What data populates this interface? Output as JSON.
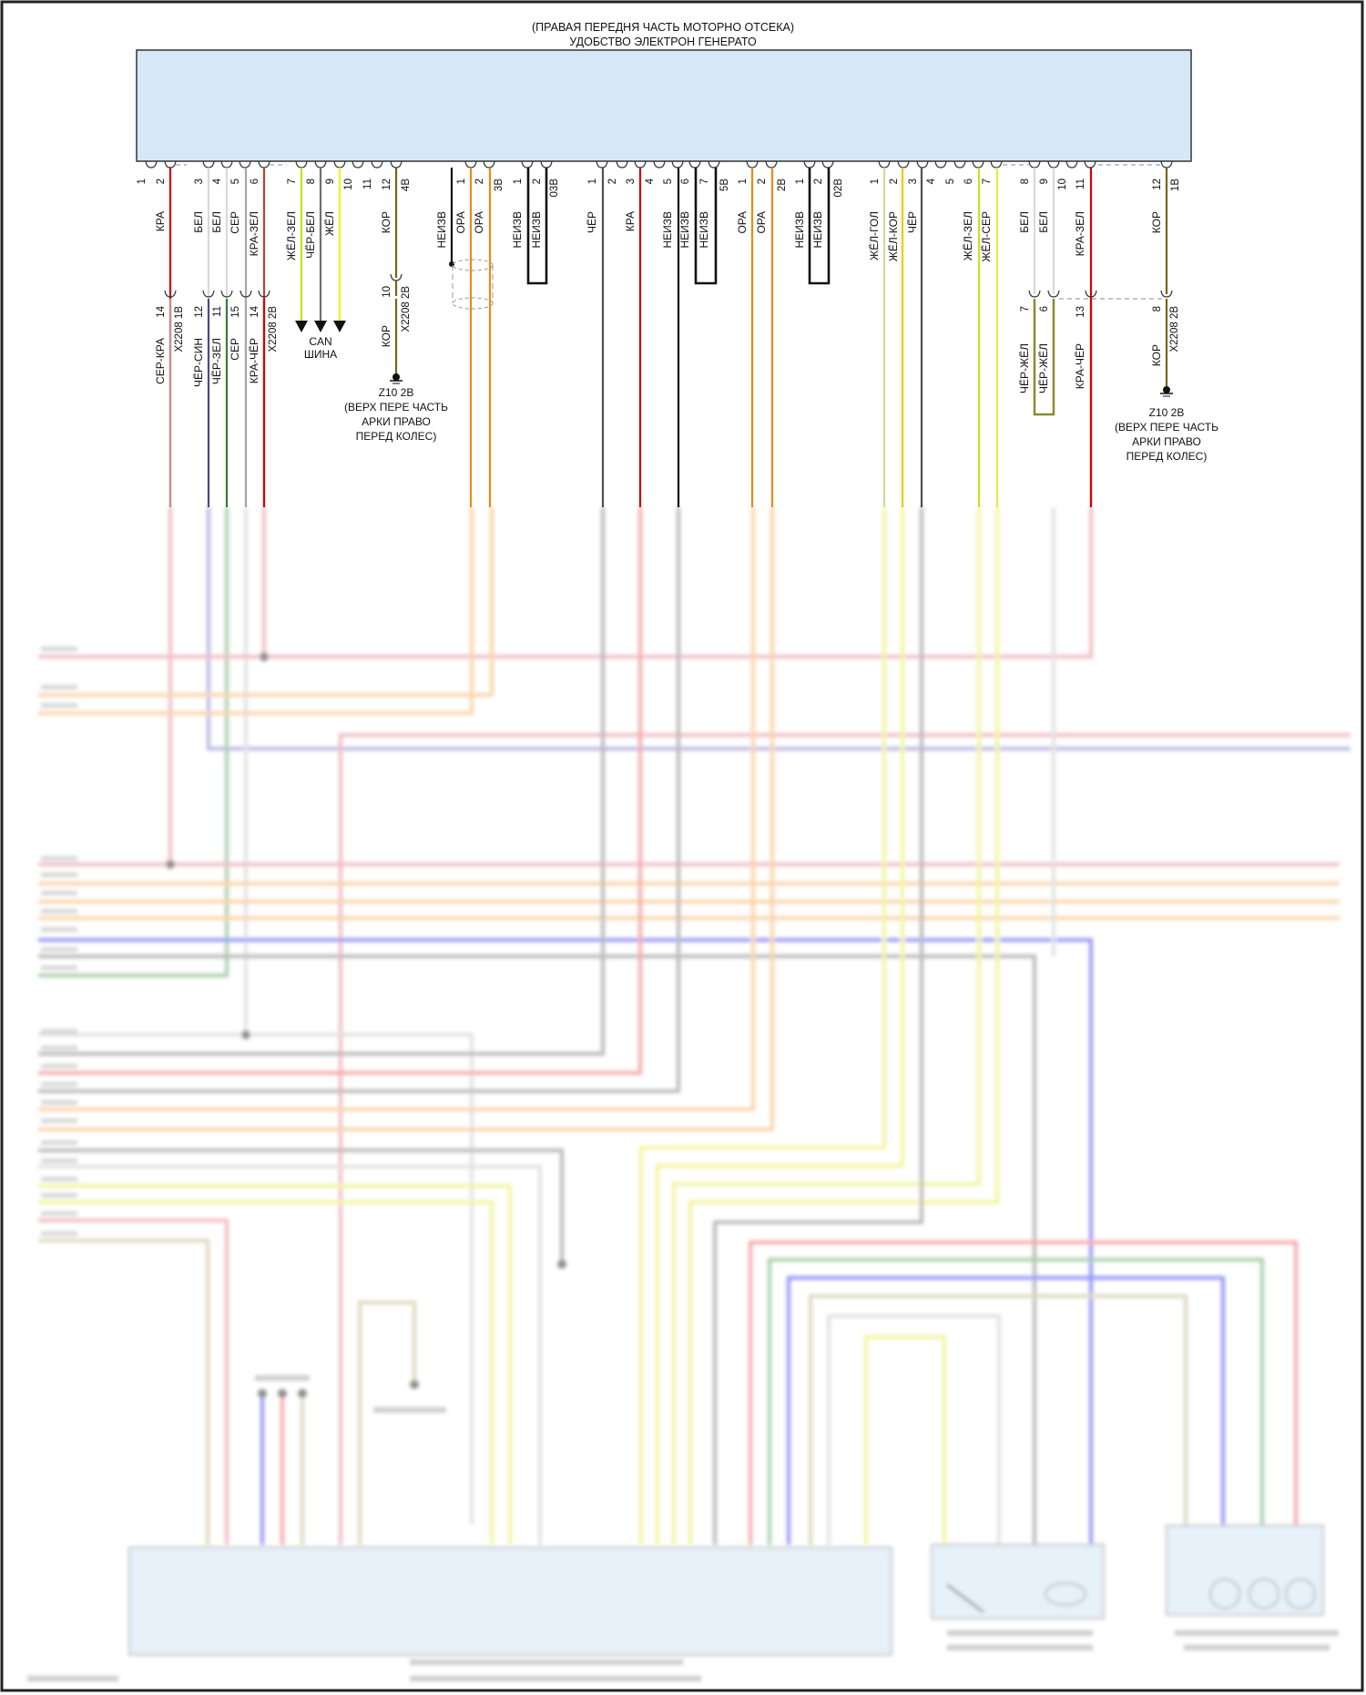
{
  "title": {
    "line1": "(ПРАВАЯ ПЕРЕДНЯ ЧАСТЬ МОТОРНО ОТСЕКА)",
    "line2": "УДОБСТВО ЭЛЕКТРОН ГЕНЕРАТО"
  },
  "top_pins": [
    "1",
    "2",
    "3",
    "4",
    "5",
    "6",
    "7",
    "8",
    "9",
    "10",
    "11",
    "12",
    "1",
    "2",
    "1",
    "2",
    "1",
    "2",
    "3",
    "4",
    "5",
    "6",
    "7",
    "1",
    "2",
    "1",
    "2",
    "1",
    "2",
    "3",
    "4",
    "5",
    "6",
    "7",
    "8",
    "9",
    "10",
    "11",
    "12"
  ],
  "connector_codes": [
    "4В",
    "3В",
    "03В",
    "5В",
    "2В",
    "02В",
    "1В"
  ],
  "top_wire_labels": [
    "КРА",
    "БЕЛ",
    "БЕЛ",
    "СЕР",
    "КРА-ЗЕЛ",
    "ЖЁЛ-ЗЕЛ",
    "ЧЁР-БЕЛ",
    "ЖЁЛ",
    "КОР",
    "НЕИЗВ",
    "ОРА",
    "ОРА",
    "НЕИЗВ",
    "НЕИЗВ",
    "ЧЁР",
    "КРА",
    "НЕИЗВ",
    "НЕИЗВ",
    "НЕИЗВ",
    "ОРА",
    "ОРА",
    "НЕИЗВ",
    "НЕИЗВ",
    "ЖЁЛ-ГОЛ",
    "ЖЁЛ-КОР",
    "ЧЁР",
    "ЖЁЛ-ЗЕЛ",
    "ЖЁЛ-СЕР",
    "БЕЛ",
    "БЕЛ",
    "КРА-ЗЕЛ",
    "КОР"
  ],
  "lower_pins": [
    "14",
    "12",
    "11",
    "15",
    "14",
    "10",
    "7",
    "6",
    "13",
    "8"
  ],
  "lower_connectors": [
    "X2208 1В",
    "X2208 2В",
    "X2208 2В",
    "X2208 2В"
  ],
  "lower_wire_labels": [
    "СЕР-КРА",
    "ЧЁР-СИН",
    "ЧЁР-ЗЕЛ",
    "СЕР",
    "КРА-ЧЁР",
    "КОР",
    "ЧЁР-ЖЁЛ",
    "ЧЁР-ЖЁЛ",
    "КРА-ЧЁР",
    "КОР"
  ],
  "can_bus": {
    "line1": "CAN",
    "line2": "ШИНА"
  },
  "grounds": [
    {
      "id": "Z10 2В",
      "lines": [
        "(ВЕРХ ПЕРЕ ЧАСТЬ",
        "АРКИ ПРАВО",
        "ПЕРЕД КОЛЕС)"
      ]
    },
    {
      "id": "Z10 2В",
      "lines": [
        "(ВЕРХ ПЕРЕ ЧАСТЬ",
        "АРКИ ПРАВО",
        "ПЕРЕД КОЛЕС)"
      ]
    }
  ],
  "colors": {
    "module_fill": "#d6e8f8",
    "red": "#d40000",
    "white": "#d9d9d9",
    "gray": "#a8a8a8",
    "red_brown": "#b5452a",
    "yellow_green": "#c9e21a",
    "black_white": "#707070",
    "yellow": "#f2f21a",
    "brown": "#7a6410",
    "black": "#111111",
    "orange": "#e88c12",
    "dark_gray": "#505050",
    "yellow_blue": "#d8d89a",
    "yellow_brown": "#e0d000",
    "yellow_gray": "#e8e84a",
    "navy": "#4a4a8a",
    "green": "#3a7a3a",
    "pinkish": "#c49090"
  }
}
